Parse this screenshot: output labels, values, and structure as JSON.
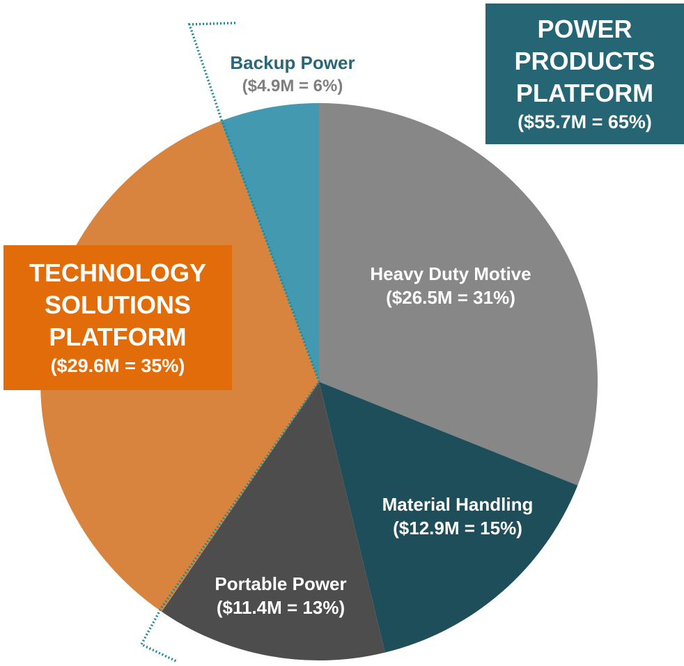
{
  "chart_data": {
    "type": "pie",
    "categories": [
      "Heavy Duty Motive",
      "Material Handling",
      "Portable Power",
      "TECHNOLOGY SOLUTIONS PLATFORM",
      "Backup Power"
    ],
    "values": [
      26.5,
      12.9,
      11.4,
      29.6,
      4.9
    ],
    "value_labels": [
      "($26.5M = 31%)",
      "($12.9M = 15%)",
      "($11.4M = 13%)",
      "($29.6M = 35%)",
      "($4.9M = 6%)"
    ],
    "colors": [
      "#878787",
      "#1f4e5b",
      "#4d4d4d",
      "#d9843e",
      "#4399b0"
    ],
    "annotations": [
      {
        "text": "POWER PRODUCTS PLATFORM",
        "label": "($55.7M = 65%)"
      }
    ]
  }
}
